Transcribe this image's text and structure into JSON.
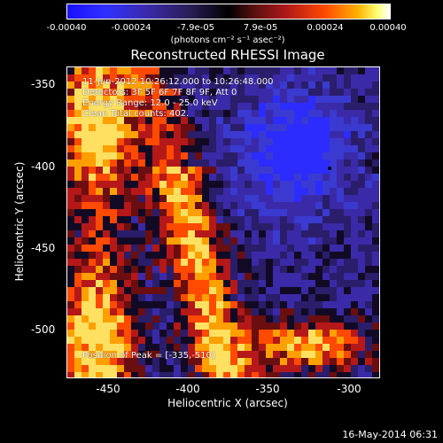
{
  "colorbar": {
    "ticks": [
      "-0.00040",
      "-0.00024",
      "-7.9e-05",
      "7.9e-05",
      "0.00024",
      "0.00040"
    ],
    "units": "(photons cm⁻² s⁻¹ asec⁻²)",
    "colors": [
      "#1a10ff",
      "#000000",
      "#ff4a00",
      "#ffffff"
    ]
  },
  "title": "Reconstructed RHESSI Image",
  "info": {
    "time": "11-Jun-2012 10:26:12.000 to 10:26:48.000",
    "detectors": "Detectors: 3F 5F 6F 7F 8F 9F, Att 0",
    "energy": "Energy Range: 12.0 - 25.0 keV",
    "clean": "Clean     Total counts: 402."
  },
  "peak": "Position of Peak = [-335,-510]",
  "axes": {
    "xlabel": "Heliocentric X (arcsec)",
    "ylabel": "Heliocentric Y (arcsec)",
    "xticks": [
      "-450",
      "-400",
      "-350",
      "-300"
    ],
    "yticks": [
      "-350",
      "-400",
      "-450",
      "-500"
    ],
    "xlim": [
      -475,
      -282
    ],
    "ylim": [
      -530,
      -338
    ]
  },
  "timestamp": "16-May-2014 06:31"
}
